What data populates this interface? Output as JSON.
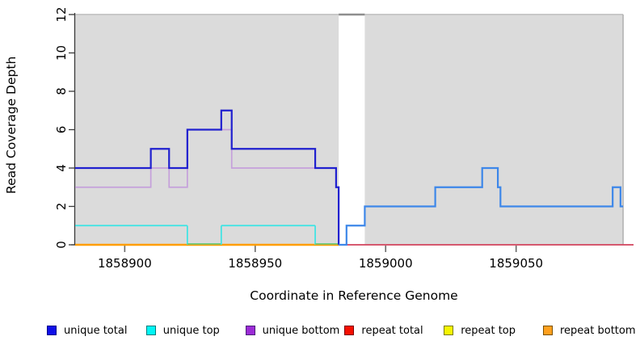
{
  "chart_data": {
    "type": "line",
    "style": "step",
    "title": "",
    "xlabel": "Coordinate in Reference Genome",
    "ylabel": "Read Coverage Depth",
    "xlim": [
      1858881,
      1859095
    ],
    "ylim": [
      0,
      12
    ],
    "x_ticks": [
      "1858900",
      "1858950",
      "1859000",
      "1859050"
    ],
    "x_tick_values": [
      1858900,
      1858950,
      1859000,
      1859050
    ],
    "y_ticks": [
      "0",
      "2",
      "4",
      "6",
      "8",
      "10",
      "12"
    ],
    "y_tick_values": [
      0,
      2,
      4,
      6,
      8,
      10,
      12
    ],
    "grid": false,
    "plot_bg": "#ffffff",
    "region_bg": "#dbdbdb",
    "region_top_border": "#c8c8c8",
    "gap_bridge_color": "#8e8e8e",
    "region_right_edge_color": "#adadad",
    "axis_color": "#3a3a3a",
    "coverage_regions": [
      {
        "start": 1858881,
        "end": 1858982
      },
      {
        "start": 1858992,
        "end": 1859091
      }
    ],
    "gap": {
      "start": 1858982,
      "end": 1858992
    },
    "series": [
      {
        "id": "repeat-bottom",
        "name": "repeat bottom",
        "color": "#ff9e00",
        "width": 2.4,
        "points": [
          [
            1858881,
            0
          ],
          [
            1858982,
            0
          ]
        ]
      },
      {
        "id": "repeat-total",
        "name": "repeat total",
        "color": "#d84a63",
        "width": 1.8,
        "points": [
          [
            1858982,
            0
          ],
          [
            1859095,
            0
          ]
        ]
      },
      {
        "id": "unique-top",
        "name": "unique top",
        "color": "#3be4e4",
        "zero_color": "#6fc97e",
        "width": 1.7,
        "points": [
          [
            1858881,
            1
          ],
          [
            1858924,
            0
          ],
          [
            1858937,
            1
          ],
          [
            1858973,
            0
          ],
          [
            1858982,
            0
          ]
        ]
      },
      {
        "id": "unique-bottom",
        "name": "unique bottom",
        "color": "#c5a0db",
        "width": 1.7,
        "points": [
          [
            1858881,
            3
          ],
          [
            1858910,
            4
          ],
          [
            1858917,
            3
          ],
          [
            1858924,
            6
          ],
          [
            1858941,
            4
          ],
          [
            1858981,
            3
          ],
          [
            1858982,
            0
          ]
        ]
      },
      {
        "id": "unique-total-left",
        "name": "unique total (left block)",
        "color": "#2020cf",
        "width": 2.2,
        "points": [
          [
            1858881,
            4
          ],
          [
            1858910,
            5
          ],
          [
            1858917,
            4
          ],
          [
            1858924,
            6
          ],
          [
            1858937,
            7
          ],
          [
            1858941,
            5
          ],
          [
            1858973,
            4
          ],
          [
            1858981,
            3
          ],
          [
            1858982,
            0
          ]
        ]
      },
      {
        "id": "coverage-right",
        "name": "total (right block)",
        "color": "#3d87e9",
        "width": 2.2,
        "points": [
          [
            1858982,
            0
          ],
          [
            1858985,
            1
          ],
          [
            1858992,
            2
          ],
          [
            1859019,
            3
          ],
          [
            1859037,
            4
          ],
          [
            1859043,
            3
          ],
          [
            1859044,
            2
          ],
          [
            1859087,
            3
          ],
          [
            1859090,
            2
          ],
          [
            1859091,
            2
          ]
        ]
      }
    ],
    "legend": [
      {
        "label": "unique total",
        "fill": "#0f0fe8",
        "border": "#00008b"
      },
      {
        "label": "unique top",
        "fill": "#00f5f5",
        "border": "#007a7a"
      },
      {
        "label": "unique bottom",
        "fill": "#9c2bd6",
        "border": "#4b1e78"
      },
      {
        "label": "repeat total",
        "fill": "#f50f00",
        "border": "#7a0000"
      },
      {
        "label": "repeat top",
        "fill": "#f5f500",
        "border": "#7a7a00"
      },
      {
        "label": "repeat bottom",
        "fill": "#ffa01e",
        "border": "#7a5000"
      }
    ],
    "legend_position": "bottom"
  }
}
